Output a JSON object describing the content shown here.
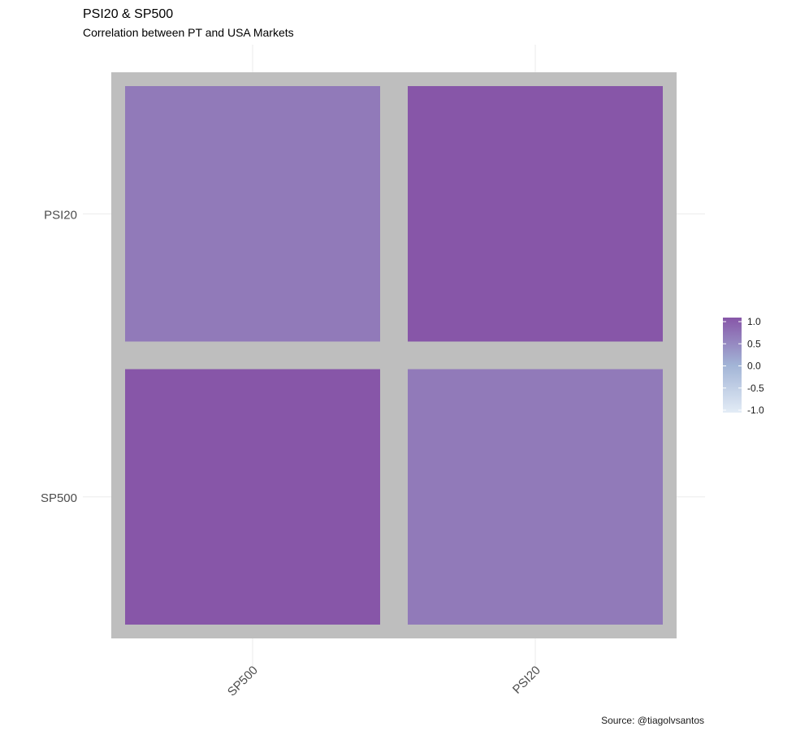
{
  "chart_data": {
    "type": "heatmap",
    "title": "PSI20 & SP500",
    "subtitle": "Correlation between PT and USA Markets",
    "caption": "Source: @tiagolvsantos",
    "x_categories": [
      "SP500",
      "PSI20"
    ],
    "y_categories": [
      "PSI20",
      "SP500"
    ],
    "cells": [
      {
        "x": "SP500",
        "y": "PSI20",
        "value": 0.62
      },
      {
        "x": "PSI20",
        "y": "PSI20",
        "value": 1.0
      },
      {
        "x": "SP500",
        "y": "SP500",
        "value": 1.0
      },
      {
        "x": "PSI20",
        "y": "SP500",
        "value": 0.62
      }
    ],
    "legend": {
      "position": "right",
      "range": [
        -1,
        1
      ],
      "ticks": [
        "1.0",
        "0.5",
        "0.0",
        "-0.5",
        "-1.0"
      ],
      "tick_values": [
        1.0,
        0.5,
        0.0,
        -0.5,
        -1.0
      ]
    },
    "colors": {
      "high": "#8756a8",
      "mid": "#a2b4d6",
      "low": "#e3ecf6",
      "tile_border": "#bebebe",
      "grid": "#ebebeb"
    },
    "grid": true,
    "x_tick_rotation": "45"
  }
}
